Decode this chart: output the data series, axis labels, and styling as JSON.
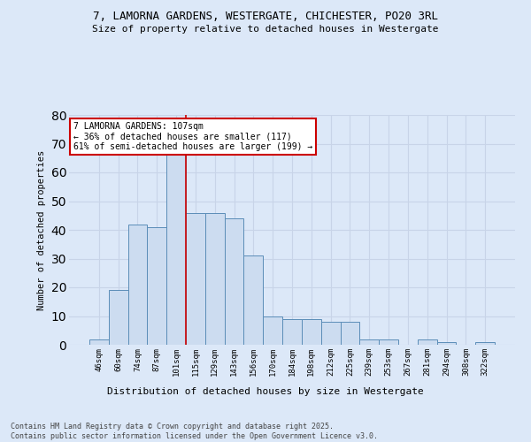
{
  "title_line1": "7, LAMORNA GARDENS, WESTERGATE, CHICHESTER, PO20 3RL",
  "title_line2": "Size of property relative to detached houses in Westergate",
  "xlabel": "Distribution of detached houses by size in Westergate",
  "ylabel": "Number of detached properties",
  "categories": [
    "46sqm",
    "60sqm",
    "74sqm",
    "87sqm",
    "101sqm",
    "115sqm",
    "129sqm",
    "143sqm",
    "156sqm",
    "170sqm",
    "184sqm",
    "198sqm",
    "212sqm",
    "225sqm",
    "239sqm",
    "253sqm",
    "267sqm",
    "281sqm",
    "294sqm",
    "308sqm",
    "322sqm"
  ],
  "values": [
    2,
    19,
    42,
    41,
    67,
    46,
    46,
    44,
    31,
    10,
    9,
    9,
    8,
    8,
    2,
    2,
    0,
    2,
    1,
    0,
    1
  ],
  "bar_color": "#ccdcf0",
  "bar_edge_color": "#5b8db8",
  "grid_color": "#c8d4e8",
  "background_color": "#dce8f8",
  "vline_color": "#cc0000",
  "annotation_text": "7 LAMORNA GARDENS: 107sqm\n← 36% of detached houses are smaller (117)\n61% of semi-detached houses are larger (199) →",
  "annotation_box_color": "white",
  "annotation_box_edge_color": "#cc0000",
  "ylim": [
    0,
    80
  ],
  "footnote": "Contains HM Land Registry data © Crown copyright and database right 2025.\nContains public sector information licensed under the Open Government Licence v3.0."
}
